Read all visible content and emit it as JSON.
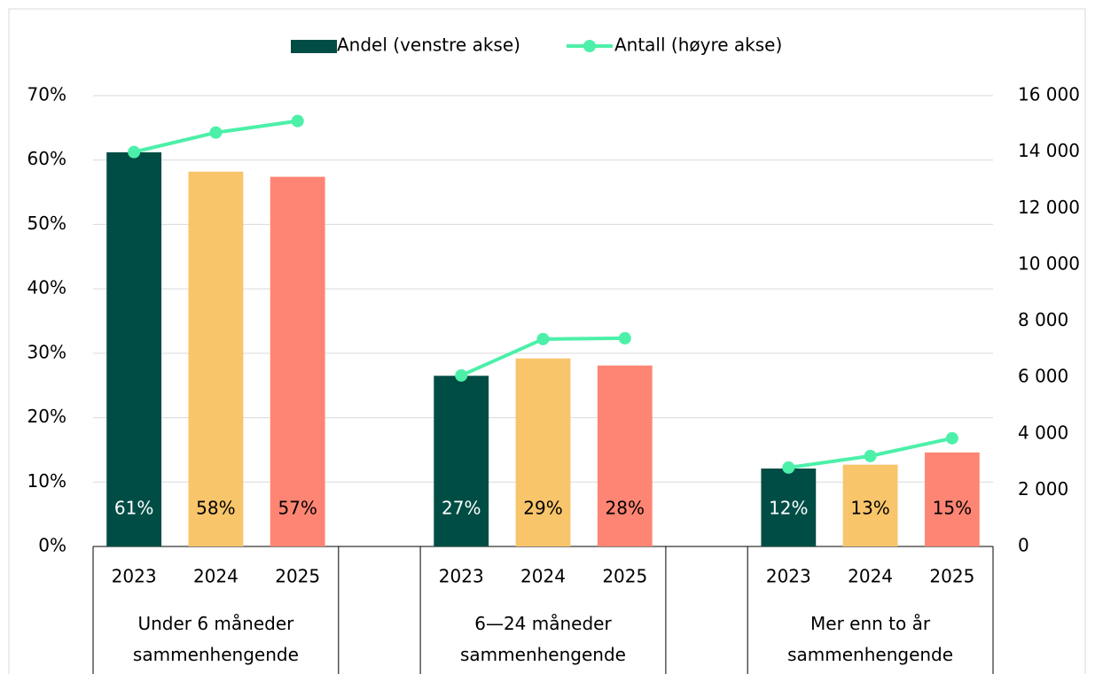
{
  "chart_data": {
    "type": "bar_line",
    "groups": [
      {
        "label": "Under 6 måneder sammenhengende",
        "categories": [
          "2023",
          "2024",
          "2025"
        ]
      },
      {
        "label": "6—24 måneder sammenhengende",
        "categories": [
          "2023",
          "2024",
          "2025"
        ]
      },
      {
        "label": "Mer enn to år sammenhengende",
        "categories": [
          "2023",
          "2024",
          "2025"
        ]
      }
    ],
    "series": [
      {
        "name": "Andel (venstre akse)",
        "type": "bar",
        "color": "#004d45",
        "colors": [
          "#004d45",
          "#f8c56b",
          "#fe8573"
        ],
        "values": [
          [
            61.2,
            58.2,
            57.4
          ],
          [
            26.5,
            29.2,
            28.1
          ],
          [
            12.1,
            12.7,
            14.6
          ]
        ],
        "value_labels": [
          [
            "61%",
            "58%",
            "57%"
          ],
          [
            "27%",
            "29%",
            "28%"
          ],
          [
            "12%",
            "13%",
            "15%"
          ]
        ]
      },
      {
        "name": "Antall (høyre akse)",
        "type": "line",
        "axis": "y2",
        "color": "#4cf0a8",
        "values": [
          [
            14000,
            14690,
            15100
          ],
          [
            6070,
            7360,
            7390
          ],
          [
            2800,
            3210,
            3840
          ]
        ]
      }
    ],
    "ylim": [
      0,
      70
    ],
    "yticks": [
      {
        "value": 0,
        "label": "0%"
      },
      {
        "value": 10,
        "label": "10%"
      },
      {
        "value": 20,
        "label": "20%"
      },
      {
        "value": 30,
        "label": "30%"
      },
      {
        "value": 40,
        "label": "40%"
      },
      {
        "value": 50,
        "label": "50%"
      },
      {
        "value": 60,
        "label": "60%"
      },
      {
        "value": 70,
        "label": "70%"
      }
    ],
    "y2lim": [
      0,
      16000
    ],
    "y2ticks": [
      0,
      {
        "value": 2000,
        "label": "2 000"
      },
      {
        "value": 4000,
        "label": "4 000"
      },
      {
        "value": 6000,
        "label": "6 000"
      },
      {
        "value": 8000,
        "label": "8 000"
      },
      {
        "value": 10000,
        "label": "10 000"
      },
      {
        "value": 12000,
        "label": "12 000"
      },
      {
        "value": 14000,
        "label": "14 000"
      },
      {
        "value": 16000,
        "label": "16 000"
      }
    ],
    "grid": true,
    "legend": "top"
  }
}
